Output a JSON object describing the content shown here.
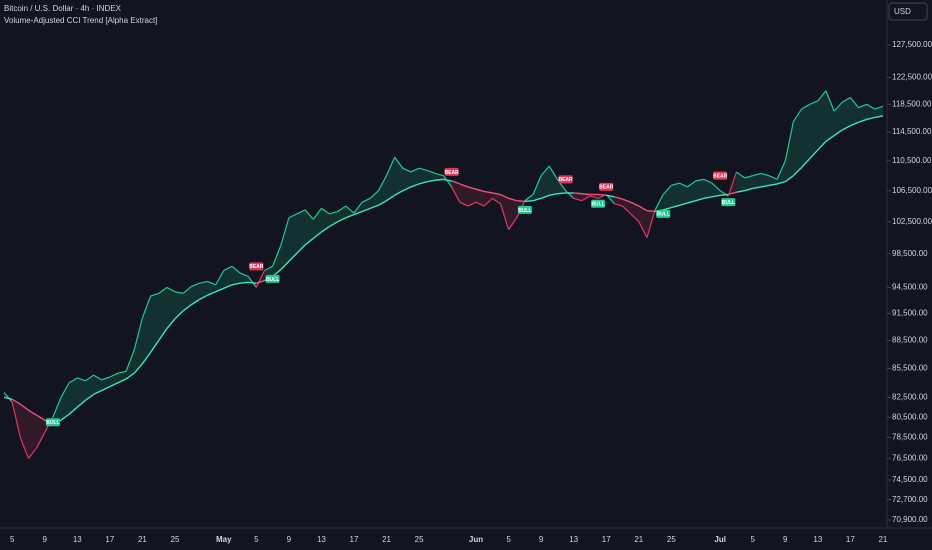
{
  "chart_data": {
    "type": "line",
    "title": "Bitcoin / U.S. Dollar · 4h · INDEX",
    "subtitle": "Volume-Adjusted CCI Trend [Alpha Extract]",
    "currency": "USD",
    "log_scale": true,
    "ylim": [
      70200,
      134800
    ],
    "yticks": [
      {
        "value": 127500,
        "label": "127,500.00"
      },
      {
        "value": 122500,
        "label": "122,500.00"
      },
      {
        "value": 118500,
        "label": "118,500.00"
      },
      {
        "value": 114500,
        "label": "114,500.00"
      },
      {
        "value": 110500,
        "label": "110,500.00"
      },
      {
        "value": 106500,
        "label": "106,500.00"
      },
      {
        "value": 102500,
        "label": "102,500.00"
      },
      {
        "value": 98500,
        "label": "98,500.00"
      },
      {
        "value": 94500,
        "label": "94,500.00"
      },
      {
        "value": 91500,
        "label": "91,500.00"
      },
      {
        "value": 88500,
        "label": "88,500.00"
      },
      {
        "value": 85500,
        "label": "85,500.00"
      },
      {
        "value": 82500,
        "label": "82,500.00"
      },
      {
        "value": 80500,
        "label": "80,500.00"
      },
      {
        "value": 78500,
        "label": "78,500.00"
      },
      {
        "value": 76500,
        "label": "76,500.00"
      },
      {
        "value": 74500,
        "label": "74,500.00"
      },
      {
        "value": 72700,
        "label": "72,700.00"
      },
      {
        "value": 70900,
        "label": "70,900.00"
      }
    ],
    "categories": [
      null,
      "5",
      null,
      null,
      null,
      "9",
      null,
      null,
      null,
      "13",
      null,
      null,
      null,
      "17",
      null,
      null,
      null,
      "21",
      null,
      null,
      null,
      "25",
      null,
      null,
      null,
      null,
      null,
      "May",
      null,
      null,
      null,
      "5",
      null,
      null,
      null,
      "9",
      null,
      null,
      null,
      "13",
      null,
      null,
      null,
      "17",
      null,
      null,
      null,
      "21",
      null,
      null,
      null,
      "25",
      null,
      null,
      null,
      null,
      null,
      null,
      "Jun",
      null,
      null,
      null,
      "5",
      null,
      null,
      null,
      "9",
      null,
      null,
      null,
      "13",
      null,
      null,
      null,
      "17",
      null,
      null,
      null,
      "21",
      null,
      null,
      null,
      "25",
      null,
      null,
      null,
      null,
      null,
      "Jul",
      null,
      null,
      null,
      "5",
      null,
      null,
      null,
      "9",
      null,
      null,
      null,
      "13",
      null,
      null,
      null,
      "17",
      null,
      null,
      null,
      "21"
    ],
    "up_color": "#22c993",
    "down_color": "#e0375f",
    "series": [
      {
        "values": [
          83000,
          82000,
          78500,
          76500,
          77500,
          79000,
          80500,
          82500,
          84000,
          84500,
          84200,
          84800,
          84300,
          84600,
          85000,
          85200,
          87500,
          91000,
          93500,
          93800,
          94500,
          94000,
          93800,
          94600,
          95000,
          95200,
          94800,
          96500,
          97000,
          96200,
          95800,
          94500,
          96500,
          97000,
          99500,
          103000,
          103500,
          104000,
          102800,
          104200,
          103500,
          103800,
          104500,
          103600,
          105000,
          105500,
          106500,
          108500,
          111000,
          109500,
          109000,
          109500,
          109200,
          108800,
          108500,
          107000,
          105000,
          104500,
          105000,
          104500,
          105500,
          104800,
          101500,
          103000,
          105200,
          106000,
          108500,
          109800,
          108000,
          106500,
          105500,
          105200,
          105800,
          105500,
          106000,
          104800,
          104500,
          103500,
          102500,
          100500,
          104000,
          106000,
          107200,
          107500,
          107000,
          107800,
          108000,
          107500,
          106500,
          105800,
          109000,
          108200,
          108500,
          108800,
          108500,
          108000,
          110500,
          116000,
          117800,
          118500,
          119000,
          120500,
          117500,
          118800,
          119500,
          118000,
          118500,
          117800,
          118200
        ]
      },
      {
        "values": [
          82500,
          82300,
          81800,
          81200,
          80700,
          80200,
          79800,
          80200,
          80800,
          81500,
          82200,
          82800,
          83200,
          83600,
          84000,
          84400,
          85000,
          86000,
          87200,
          88500,
          89800,
          90900,
          91800,
          92500,
          93100,
          93600,
          94000,
          94400,
          94800,
          95000,
          95100,
          95000,
          95300,
          95800,
          96600,
          97600,
          98600,
          99600,
          100400,
          101200,
          101900,
          102500,
          103000,
          103400,
          103800,
          104200,
          104600,
          105200,
          105900,
          106500,
          107000,
          107400,
          107700,
          107900,
          108000,
          107800,
          107400,
          107000,
          106700,
          106400,
          106200,
          106000,
          105500,
          105200,
          105100,
          105200,
          105500,
          105900,
          106100,
          106200,
          106200,
          106100,
          106000,
          106000,
          105900,
          105700,
          105400,
          105000,
          104500,
          103900,
          103800,
          104000,
          104300,
          104600,
          104900,
          105200,
          105500,
          105700,
          105900,
          106000,
          106300,
          106500,
          106800,
          107000,
          107200,
          107400,
          107700,
          108500,
          109600,
          110800,
          112000,
          113200,
          114000,
          114800,
          115400,
          115900,
          116300,
          116600,
          116800
        ]
      }
    ],
    "annotations": [
      {
        "text": "BULL",
        "x": 6,
        "y": 80000
      },
      {
        "text": "BEAR",
        "x": 31,
        "y": 97000
      },
      {
        "text": "BULL",
        "x": 33,
        "y": 95500
      },
      {
        "text": "BEAR",
        "x": 55,
        "y": 109000
      },
      {
        "text": "BULL",
        "x": 64,
        "y": 104000
      },
      {
        "text": "BEAR",
        "x": 69,
        "y": 108000
      },
      {
        "text": "BULL",
        "x": 73,
        "y": 104800
      },
      {
        "text": "BEAR",
        "x": 74,
        "y": 107000
      },
      {
        "text": "BULL",
        "x": 81,
        "y": 103500
      },
      {
        "text": "BEAR",
        "x": 88,
        "y": 108500
      },
      {
        "text": "BULL",
        "x": 89,
        "y": 105000
      }
    ]
  }
}
